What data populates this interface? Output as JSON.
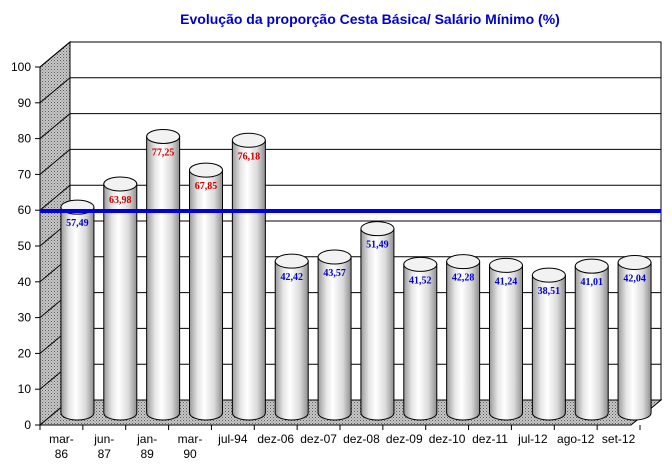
{
  "chart_data": {
    "type": "bar",
    "title": "Evolução da proporção Cesta Básica/ Salário Mínimo (%)",
    "categories": [
      [
        "mar-",
        "86"
      ],
      [
        "jun-",
        "87"
      ],
      [
        "jan-",
        "89"
      ],
      [
        "mar-",
        "90"
      ],
      [
        "jul-94"
      ],
      [
        "dez-06"
      ],
      [
        "dez-07"
      ],
      [
        "dez-08"
      ],
      [
        "dez-09"
      ],
      [
        "dez-10"
      ],
      [
        "dez-11"
      ],
      [
        "jul-12"
      ],
      [
        "ago-12"
      ],
      [
        "set-12"
      ]
    ],
    "values": [
      57.49,
      63.98,
      77.25,
      67.85,
      76.18,
      42.42,
      43.57,
      51.49,
      41.52,
      42.28,
      41.24,
      38.51,
      41.01,
      42.04
    ],
    "value_labels": [
      "57,49",
      "63,98",
      "77,25",
      "67,85",
      "76,18",
      "42,42",
      "43,57",
      "51,49",
      "41,52",
      "42,28",
      "41,24",
      "38,51",
      "41,01",
      "42,04"
    ],
    "label_colors": [
      "#0000cc",
      "#cc0000",
      "#cc0000",
      "#cc0000",
      "#cc0000",
      "#0000cc",
      "#0000cc",
      "#0000cc",
      "#0000cc",
      "#0000cc",
      "#0000cc",
      "#0000cc",
      "#0000cc",
      "#0000cc"
    ],
    "yticks": [
      "0",
      "10",
      "20",
      "30",
      "40",
      "50",
      "60",
      "70",
      "80",
      "90",
      "100"
    ],
    "ylim": [
      0,
      100
    ],
    "reference_line": 58.5,
    "reference_color": "#0000dd",
    "grid": true,
    "shape": "3d-cylinder"
  }
}
